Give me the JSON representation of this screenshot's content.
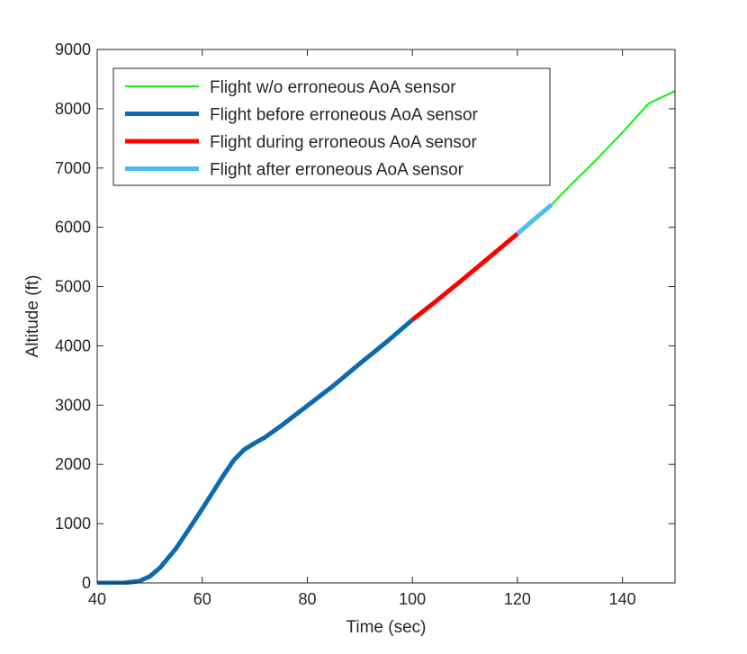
{
  "chart_data": {
    "type": "line",
    "title": "",
    "xlabel": "Time (sec)",
    "ylabel": "Altitude (ft)",
    "xlim": [
      40,
      150
    ],
    "ylim": [
      0,
      9000
    ],
    "xticks": [
      40,
      60,
      80,
      100,
      120,
      140
    ],
    "yticks": [
      0,
      1000,
      2000,
      3000,
      4000,
      5000,
      6000,
      7000,
      8000,
      9000
    ],
    "grid": false,
    "legend_position": "top-left",
    "series": [
      {
        "name": "Flight w/o erroneous AoA sensor",
        "color": "#22ee22",
        "line_weight": "thin",
        "points": [
          [
            126.5,
            6380
          ],
          [
            130,
            6700
          ],
          [
            135,
            7140
          ],
          [
            140,
            7600
          ],
          [
            145,
            8090
          ],
          [
            150,
            8300
          ]
        ]
      },
      {
        "name": "Flight before erroneous AoA sensor",
        "color": "#0e6ab0",
        "line_weight": "thick",
        "points": [
          [
            40,
            0
          ],
          [
            45,
            0
          ],
          [
            48,
            30
          ],
          [
            50,
            110
          ],
          [
            52,
            260
          ],
          [
            55,
            580
          ],
          [
            58,
            980
          ],
          [
            60,
            1250
          ],
          [
            62,
            1530
          ],
          [
            64,
            1810
          ],
          [
            66,
            2070
          ],
          [
            68,
            2250
          ],
          [
            70,
            2360
          ],
          [
            72,
            2460
          ],
          [
            75,
            2650
          ],
          [
            80,
            2990
          ],
          [
            85,
            3330
          ],
          [
            90,
            3700
          ],
          [
            95,
            4060
          ],
          [
            100,
            4440
          ]
        ]
      },
      {
        "name": "Flight during erroneous AoA sensor",
        "color": "#ff0000",
        "line_weight": "thick",
        "points": [
          [
            100,
            4440
          ],
          [
            105,
            4790
          ],
          [
            110,
            5150
          ],
          [
            115,
            5520
          ],
          [
            120,
            5890
          ]
        ]
      },
      {
        "name": "Flight after erroneous AoA sensor",
        "color": "#4dbeee",
        "line_weight": "thick",
        "points": [
          [
            120,
            5890
          ],
          [
            123,
            6120
          ],
          [
            126.5,
            6380
          ]
        ]
      }
    ]
  }
}
